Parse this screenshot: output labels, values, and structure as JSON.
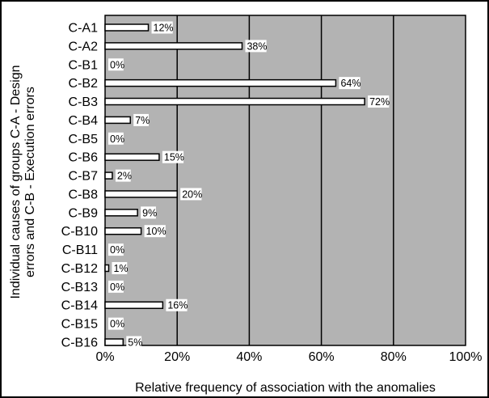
{
  "chart_data": {
    "type": "bar",
    "orientation": "horizontal",
    "title": "",
    "xlabel": "Relative frequency of association with the anomalies",
    "ylabel_lines": [
      "Individual causes of groups C-A - Design",
      "errors and C-B - Execution errors"
    ],
    "categories": [
      "C-A1",
      "C-A2",
      "C-B1",
      "C-B2",
      "C-B3",
      "C-B4",
      "C-B5",
      "C-B6",
      "C-B7",
      "C-B8",
      "C-B9",
      "C-B10",
      "C-B11",
      "C-B12",
      "C-B13",
      "C-B14",
      "C-B15",
      "C-B16"
    ],
    "values": [
      12,
      38,
      0,
      64,
      72,
      7,
      0,
      15,
      2,
      20,
      9,
      10,
      0,
      1,
      0,
      16,
      0,
      5
    ],
    "data_labels": [
      "12%",
      "38%",
      "0%",
      "64%",
      "72%",
      "7%",
      "0%",
      "15%",
      "2%",
      "20%",
      "9%",
      "10%",
      "0%",
      "1%",
      "0%",
      "16%",
      "0%",
      "5%"
    ],
    "xlim": [
      0,
      100
    ],
    "xticks": [
      0,
      20,
      40,
      60,
      80,
      100
    ],
    "xtick_labels": [
      "0%",
      "20%",
      "40%",
      "60%",
      "80%",
      "100%"
    ],
    "grid": true,
    "legend": "none",
    "colors": {
      "plot_background": "#b3b3b3",
      "bar_fill": "#ffffff",
      "bar_stroke": "#000000",
      "gridline": "#000000",
      "label_box": "#ffffff"
    }
  }
}
